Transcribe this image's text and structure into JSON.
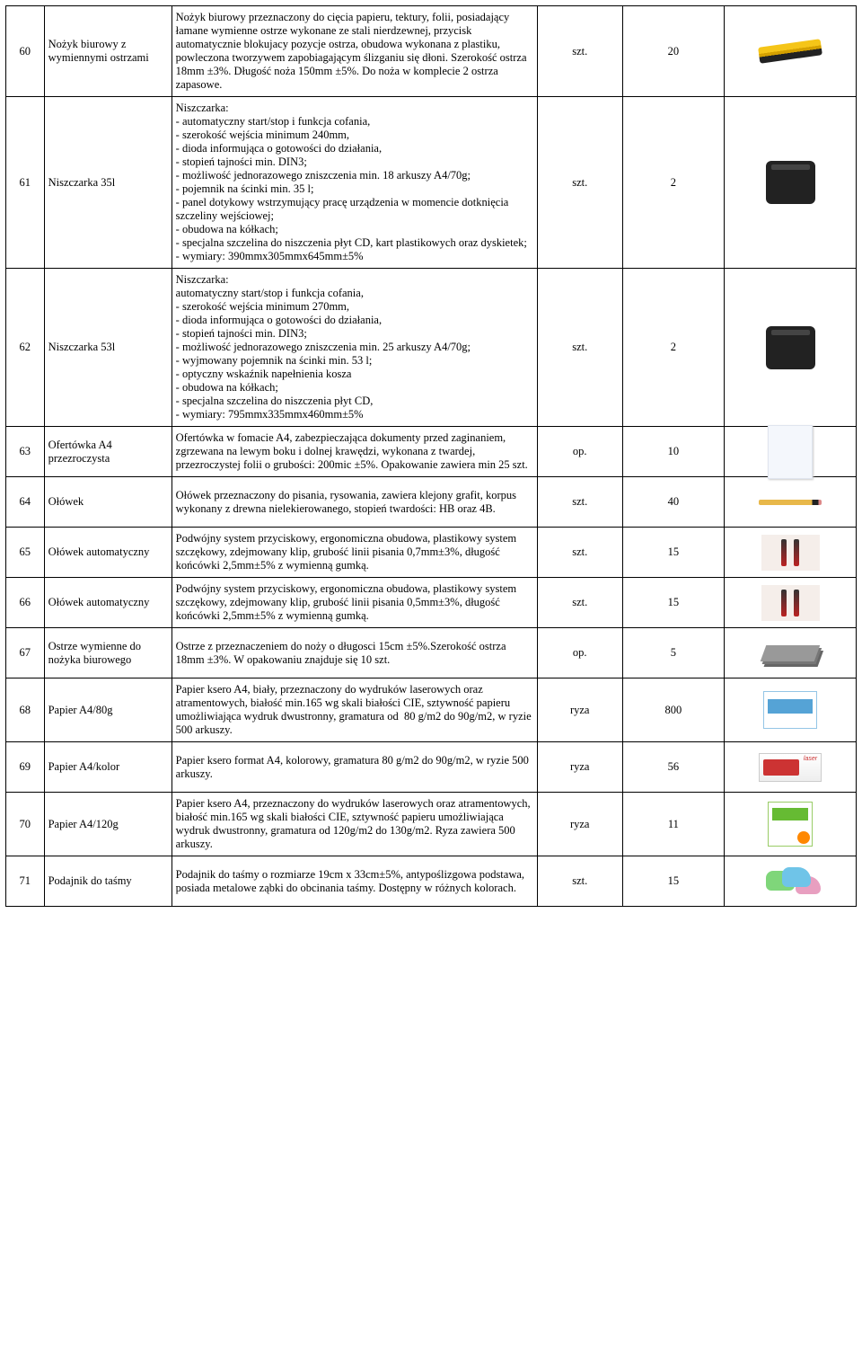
{
  "rows": [
    {
      "num": "60",
      "name": "Nożyk biurowy z wymiennymi ostrzami",
      "desc": "Nożyk biurowy przeznaczony do cięcia papieru, tektury, folii, posiadający łamane wymienne ostrze wykonane ze stali nierdzewnej, przycisk automatycznie blokujacy pozycje ostrza, obudowa wykonana z plastiku, powleczona tworzywem zapobiagającym ślizganiu się dłoni. Szerokość ostrza 18mm ±3%. Długość noża 150mm ±5%. Do noża w komplecie 2 ostrza zapasowe.",
      "unit": "szt.",
      "qty": "20",
      "icon": "cutter"
    },
    {
      "num": "61",
      "name": "Niszczarka 35l",
      "desc": "Niszczarka:\n- automatyczny start/stop i funkcja cofania,\n- szerokość wejścia minimum 240mm,\n- dioda informująca o gotowości do działania,\n- stopień tajności min. DIN3;\n- możliwość jednorazowego zniszczenia min. 18 arkuszy A4/70g;\n- pojemnik na ścinki min. 35 l;\n- panel dotykowy wstrzymujący pracę urządzenia w momencie dotknięcia szczeliny wejściowej;\n- obudowa na kółkach;\n- specjalna szczelina do niszczenia płyt CD, kart plastikowych oraz dyskietek;\n- wymiary: 390mmx305mmx645mm±5%",
      "unit": "szt.",
      "qty": "2",
      "icon": "shredder"
    },
    {
      "num": "62",
      "name": "Niszczarka 53l",
      "desc": "Niszczarka:\nautomatyczny start/stop i funkcja cofania,\n- szerokość wejścia minimum 270mm,\n- dioda informująca o gotowości do działania,\n- stopień tajności min. DIN3;\n- możliwość jednorazowego zniszczenia min. 25 arkuszy A4/70g;\n- wyjmowany pojemnik na ścinki min. 53 l;\n- optyczny wskaźnik napełnienia kosza\n- obudowa na kółkach;\n- specjalna szczelina do niszczenia płyt CD,\n- wymiary: 795mmx335mmx460mm±5%",
      "unit": "szt.",
      "qty": "2",
      "icon": "shredder"
    },
    {
      "num": "63",
      "name": "Ofertówka A4 przezroczysta",
      "desc": "Ofertówka w fomacie A4, zabezpieczająca dokumenty przed zaginaniem, zgrzewana na lewym boku i dolnej krawędzi, wykonana z twardej, przezroczystej folii o grubości: 200mic ±5%. Opakowanie zawiera min 25 szt.",
      "unit": "op.",
      "qty": "10",
      "icon": "sleeve"
    },
    {
      "num": "64",
      "name": "Ołówek",
      "desc": "Ołówek przeznaczony do pisania, rysowania, zawiera klejony grafit, korpus wykonany z drewna nielekierowanego, stopień twardości: HB oraz 4B.",
      "unit": "szt.",
      "qty": "40",
      "icon": "pencil"
    },
    {
      "num": "65",
      "name": "Ołówek automatyczny",
      "desc": "Podwójny system przyciskowy, ergonomiczna obudowa, plastikowy system szczękowy, zdejmowany klip, grubość linii pisania 0,7mm±3%, długość końcówki 2,5mm±5% z wymienną gumką.",
      "unit": "szt.",
      "qty": "15",
      "icon": "mech"
    },
    {
      "num": "66",
      "name": "Ołówek automatyczny",
      "desc": "Podwójny system przyciskowy, ergonomiczna obudowa, plastikowy system szczękowy, zdejmowany klip, grubość linii pisania 0,5mm±3%, długość końcówki 2,5mm±5% z wymienną gumką.",
      "unit": "szt.",
      "qty": "15",
      "icon": "mech"
    },
    {
      "num": "67",
      "name": "Ostrze wymienne do nożyka biurowego",
      "desc": "Ostrze z przeznaczeniem do noży o długosci 15cm ±5%.Szerokość ostrza 18mm ±3%. W opakowaniu znajduje się 10 szt.",
      "unit": "op.",
      "qty": "5",
      "icon": "blades"
    },
    {
      "num": "68",
      "name": "Papier A4/80g",
      "desc": "Papier ksero A4, biały, przeznaczony do wydruków laserowych oraz atramentowych, białość min.165 wg skali białości CIE, sztywność papieru umożliwiająca wydruk dwustronny, gramatura od  80 g/m2 do 90g/m2, w ryzie 500 arkuszy.",
      "unit": "ryza",
      "qty": "800",
      "icon": "ream"
    },
    {
      "num": "69",
      "name": "Papier A4/kolor",
      "desc": "Papier ksero format A4, kolorowy, gramatura 80 g/m2 do 90g/m2, w ryzie 500 arkuszy.",
      "unit": "ryza",
      "qty": "56",
      "icon": "ream-color"
    },
    {
      "num": "70",
      "name": "Papier A4/120g",
      "desc": "Papier ksero A4, przeznaczony do wydruków laserowych oraz atramentowych, białość min.165 wg skali białości CIE, sztywność papieru umożliwiająca wydruk dwustronny, gramatura od 120g/m2 do 130g/m2. Ryza zawiera 500 arkuszy.",
      "unit": "ryza",
      "qty": "11",
      "icon": "ream-nav"
    },
    {
      "num": "71",
      "name": "Podajnik  do  taśmy",
      "desc": "Podajnik do taśmy o rozmiarze 19cm x 33cm±5%, antypoślizgowa podstawa, posiada metalowe ząbki do obcinania taśmy. Dostępny w różnych kolorach.",
      "unit": "szt.",
      "qty": "15",
      "icon": "dispenser"
    }
  ]
}
